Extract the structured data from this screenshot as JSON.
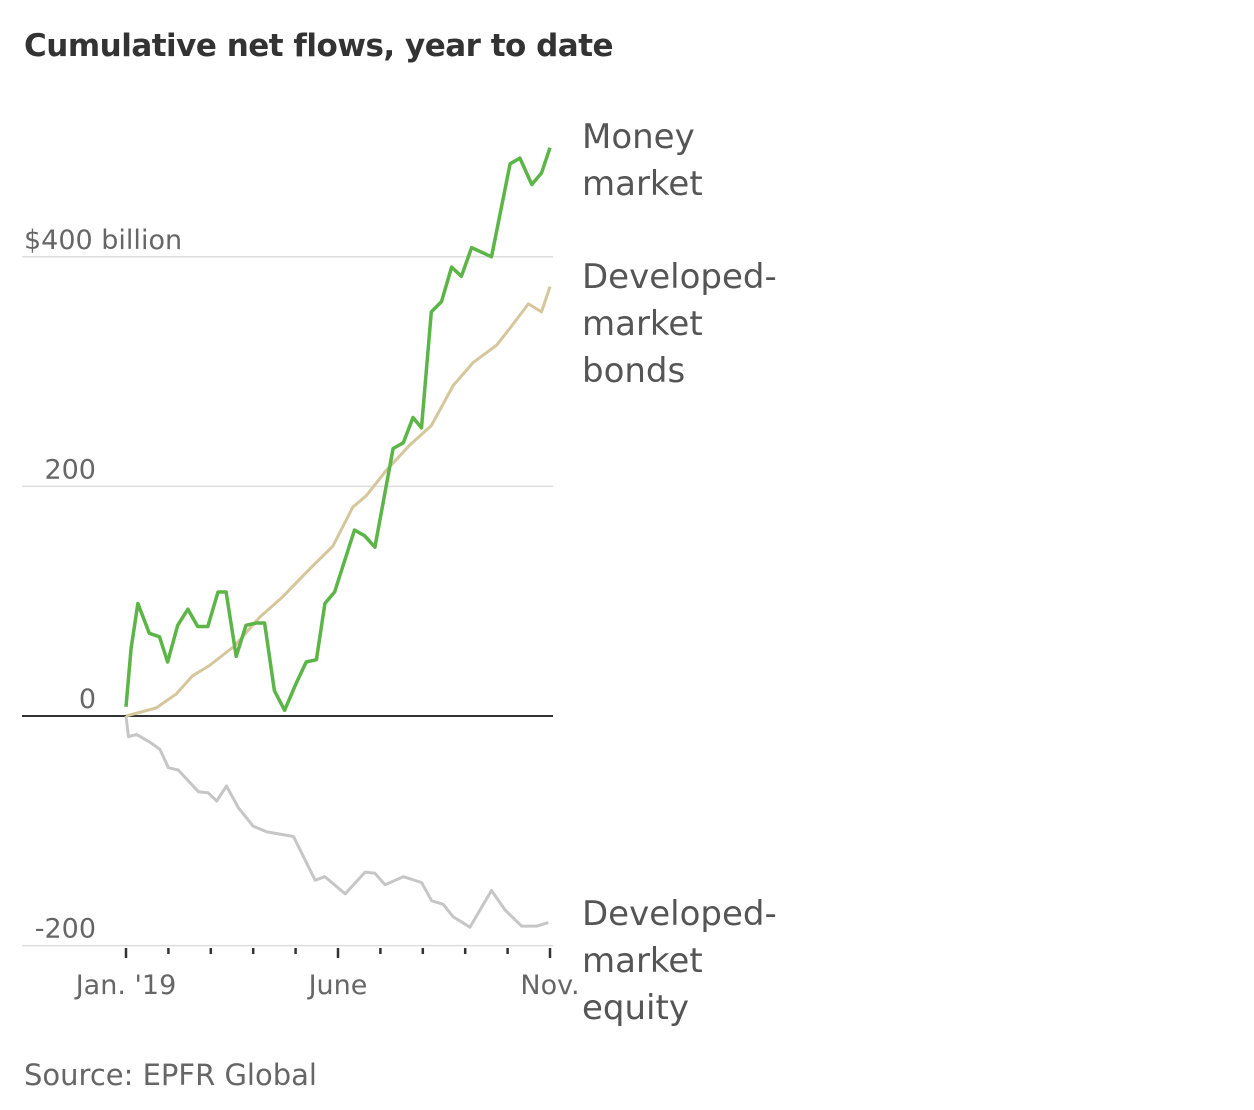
{
  "chart_data": {
    "type": "line",
    "title": "Cumulative net flows, year to date",
    "source": "Source: EPFR Global",
    "xlabel": "",
    "ylabel": "",
    "x_unit": "months since Jan. 2019",
    "xlim": [
      0,
      10
    ],
    "ylim": [
      -200,
      400
    ],
    "grid": true,
    "y_ticks": [
      {
        "value": 400,
        "label": "$400 billion"
      },
      {
        "value": 200,
        "label": "200"
      },
      {
        "value": 0,
        "label": "0"
      },
      {
        "value": -200,
        "label": "-200"
      }
    ],
    "x_ticks": [
      0,
      1,
      2,
      3,
      4,
      5,
      6,
      7,
      8,
      9,
      10
    ],
    "x_tick_labels": [
      {
        "value": 0,
        "label": "Jan. '19"
      },
      {
        "value": 5,
        "label": "June"
      },
      {
        "value": 10,
        "label": "Nov."
      }
    ],
    "series": [
      {
        "name": "Money market",
        "label_lines": [
          "Money",
          "market"
        ],
        "color": "#5cb547",
        "x": [
          0,
          0.12,
          0.28,
          0.55,
          0.79,
          0.98,
          1.22,
          1.46,
          1.69,
          1.93,
          2.17,
          2.36,
          2.6,
          2.83,
          3.07,
          3.27,
          3.5,
          3.74,
          4.02,
          4.25,
          4.49,
          4.69,
          4.92,
          5.39,
          5.63,
          5.87,
          6.3,
          6.54,
          6.77,
          6.97,
          7.2,
          7.44,
          7.68,
          7.91,
          8.15,
          8.62,
          9.06,
          9.29,
          9.57,
          9.8,
          10
        ],
        "values": [
          8,
          59,
          98,
          72,
          69,
          47,
          79,
          93,
          78,
          78,
          108,
          108,
          52,
          79,
          81,
          81,
          22,
          5,
          29,
          47,
          49,
          98,
          108,
          162,
          157,
          147,
          233,
          238,
          260,
          251,
          352,
          361,
          391,
          383,
          408,
          400,
          481,
          486,
          463,
          473,
          495
        ]
      },
      {
        "name": "Developed-market bonds",
        "label_lines": [
          "Developed-",
          "market",
          "bonds"
        ],
        "color": "#d5c69c",
        "x": [
          0,
          0.71,
          1.18,
          1.57,
          1.97,
          2.56,
          3.15,
          3.7,
          4.33,
          4.88,
          5.35,
          5.67,
          6.14,
          6.69,
          7.2,
          7.72,
          8.19,
          8.74,
          9.06,
          9.49,
          9.8,
          10
        ],
        "values": [
          0,
          7,
          19,
          35,
          44,
          61,
          86,
          104,
          128,
          148,
          182,
          192,
          214,
          236,
          253,
          288,
          308,
          323,
          338,
          359,
          352,
          374
        ]
      },
      {
        "name": "Developed-market equity",
        "label_lines": [
          "Developed-",
          "market",
          "equity"
        ],
        "color": "#c6c6c6",
        "x": [
          0,
          0.06,
          0.25,
          0.57,
          0.8,
          1,
          1.23,
          1.71,
          1.94,
          2.14,
          2.37,
          2.65,
          3,
          3.32,
          3.95,
          4.46,
          4.69,
          5.17,
          5.64,
          5.87,
          6.11,
          6.54,
          6.97,
          7.21,
          7.48,
          7.72,
          8.11,
          8.62,
          8.94,
          9.33,
          9.69,
          9.96
        ],
        "values": [
          0,
          -18,
          -16,
          -23,
          -29,
          -45,
          -47,
          -66,
          -67,
          -74,
          -61,
          -80,
          -96,
          -101,
          -105,
          -143,
          -140,
          -155,
          -136,
          -137,
          -147,
          -140,
          -145,
          -161,
          -164,
          -175,
          -184,
          -152,
          -169,
          -183,
          -183,
          -180
        ]
      }
    ]
  }
}
